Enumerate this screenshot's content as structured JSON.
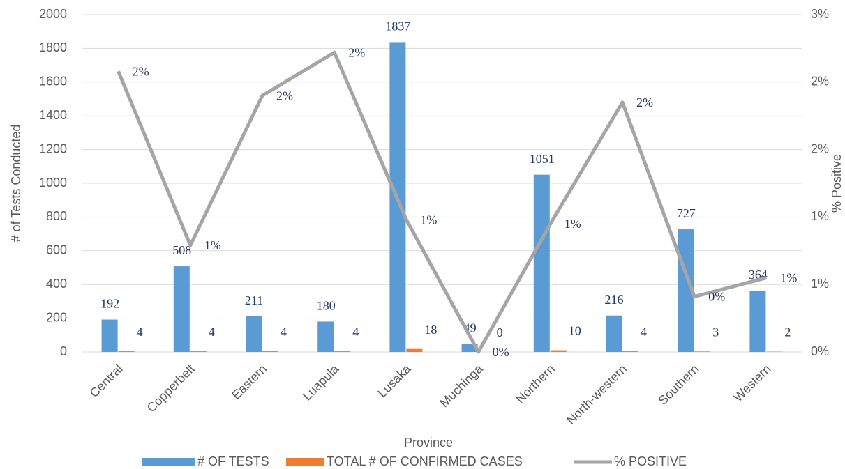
{
  "chart_data": {
    "type": "bar_line",
    "x_label": "Province",
    "y_label": "# of Tests Conducted",
    "y2_label": "% Positive",
    "categories": [
      "Central",
      "Copperbelt",
      "Eastern",
      "Luapula",
      "Lusaka",
      "Muchinga",
      "Northern",
      "North-western",
      "Southern",
      "Western"
    ],
    "series": [
      {
        "name": "# OF TESTS",
        "type": "bar",
        "color": "#5b9bd5",
        "values": [
          192,
          508,
          211,
          180,
          1837,
          49,
          1051,
          216,
          727,
          364
        ]
      },
      {
        "name": "TOTAL # OF CONFIRMED CASES",
        "type": "bar",
        "color": "#ed7d31",
        "values": [
          4,
          4,
          4,
          4,
          18,
          0,
          10,
          4,
          3,
          2
        ]
      },
      {
        "name": "% POSITIVE",
        "type": "line",
        "axis": "y2",
        "color": "#a5a5a5",
        "values": [
          2.08,
          0.79,
          1.9,
          2.22,
          0.98,
          0,
          0.95,
          1.85,
          0.41,
          0.55
        ],
        "value_labels": [
          "2%",
          "1%",
          "2%",
          "2%",
          "1%",
          "0%",
          "1%",
          "2%",
          "0%",
          "1%"
        ]
      }
    ],
    "ylim": [
      0,
      2000
    ],
    "yticks": [
      0,
      200,
      400,
      600,
      800,
      1000,
      1200,
      1400,
      1600,
      1800,
      2000
    ],
    "y2lim": [
      0,
      2.5
    ],
    "y2ticks": [
      {
        "value": 0,
        "label": "0%"
      },
      {
        "value": 0.5,
        "label": "1%"
      },
      {
        "value": 1,
        "label": "1%"
      },
      {
        "value": 1.5,
        "label": "2%"
      },
      {
        "value": 2,
        "label": "2%"
      },
      {
        "value": 2.5,
        "label": "3%"
      }
    ],
    "grid": true,
    "legend": "bottom"
  }
}
